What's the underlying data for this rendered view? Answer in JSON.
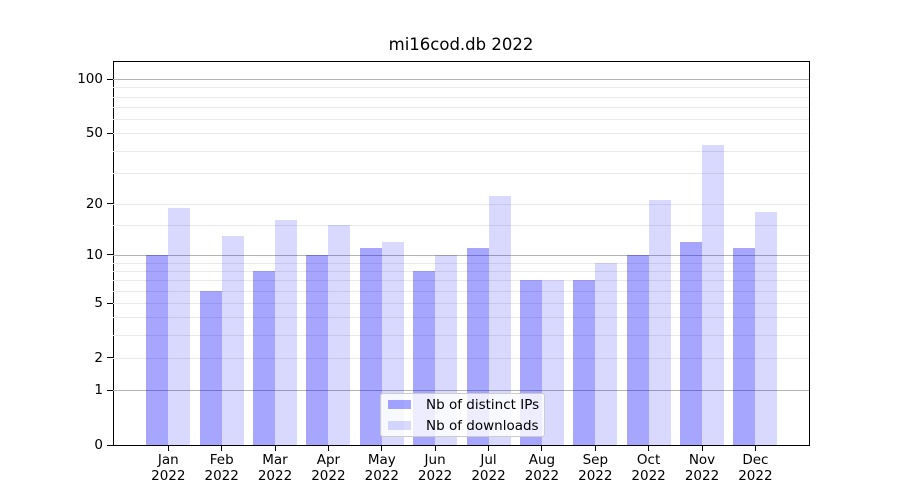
{
  "title": "mi16cod.db 2022",
  "chart_data": {
    "type": "bar",
    "title": "mi16cod.db 2022",
    "xlabel": "",
    "ylabel": "",
    "categories": [
      "Jan 2022",
      "Feb 2022",
      "Mar 2022",
      "Apr 2022",
      "May 2022",
      "Jun 2022",
      "Jul 2022",
      "Aug 2022",
      "Sep 2022",
      "Oct 2022",
      "Nov 2022",
      "Dec 2022"
    ],
    "x_tick_months": [
      "Jan",
      "Feb",
      "Mar",
      "Apr",
      "May",
      "Jun",
      "Jul",
      "Aug",
      "Sep",
      "Oct",
      "Nov",
      "Dec"
    ],
    "x_tick_year": "2022",
    "series": [
      {
        "name": "Nb of distinct IPs",
        "color": "rgba(0,0,255,0.35)",
        "values": [
          10,
          6,
          8,
          10,
          11,
          8,
          11,
          7,
          7,
          10,
          12,
          11
        ]
      },
      {
        "name": "Nb of downloads",
        "color": "rgba(0,0,255,0.15)",
        "values": [
          19,
          13,
          16,
          15,
          12,
          10,
          22,
          7,
          9,
          21,
          43,
          18
        ]
      }
    ],
    "y_scale": "log(value+1)",
    "y_axis_max": 126,
    "y_tick_values": [
      100,
      50,
      20,
      10,
      5,
      2,
      1,
      0
    ],
    "y_tick_labels": [
      "100",
      "50",
      "20",
      "10",
      "5",
      "2",
      "1",
      "0"
    ],
    "major_gridline_values": [
      1,
      10,
      100
    ],
    "minor_gridline_values": [
      2,
      3,
      4,
      5,
      6,
      7,
      8,
      9,
      15,
      20,
      30,
      40,
      50,
      60,
      70,
      80,
      90
    ],
    "grid": "on",
    "legend_position": "lower center"
  },
  "colors": {
    "background": "#ffffff",
    "bar_distinct_ips": "rgba(0,0,255,0.35)",
    "bar_downloads": "rgba(0,0,255,0.15)",
    "grid_major": "#b3b3b3",
    "grid_minor": "#e9e9e9",
    "axis": "#000000",
    "legend_border": "#cccccc"
  }
}
